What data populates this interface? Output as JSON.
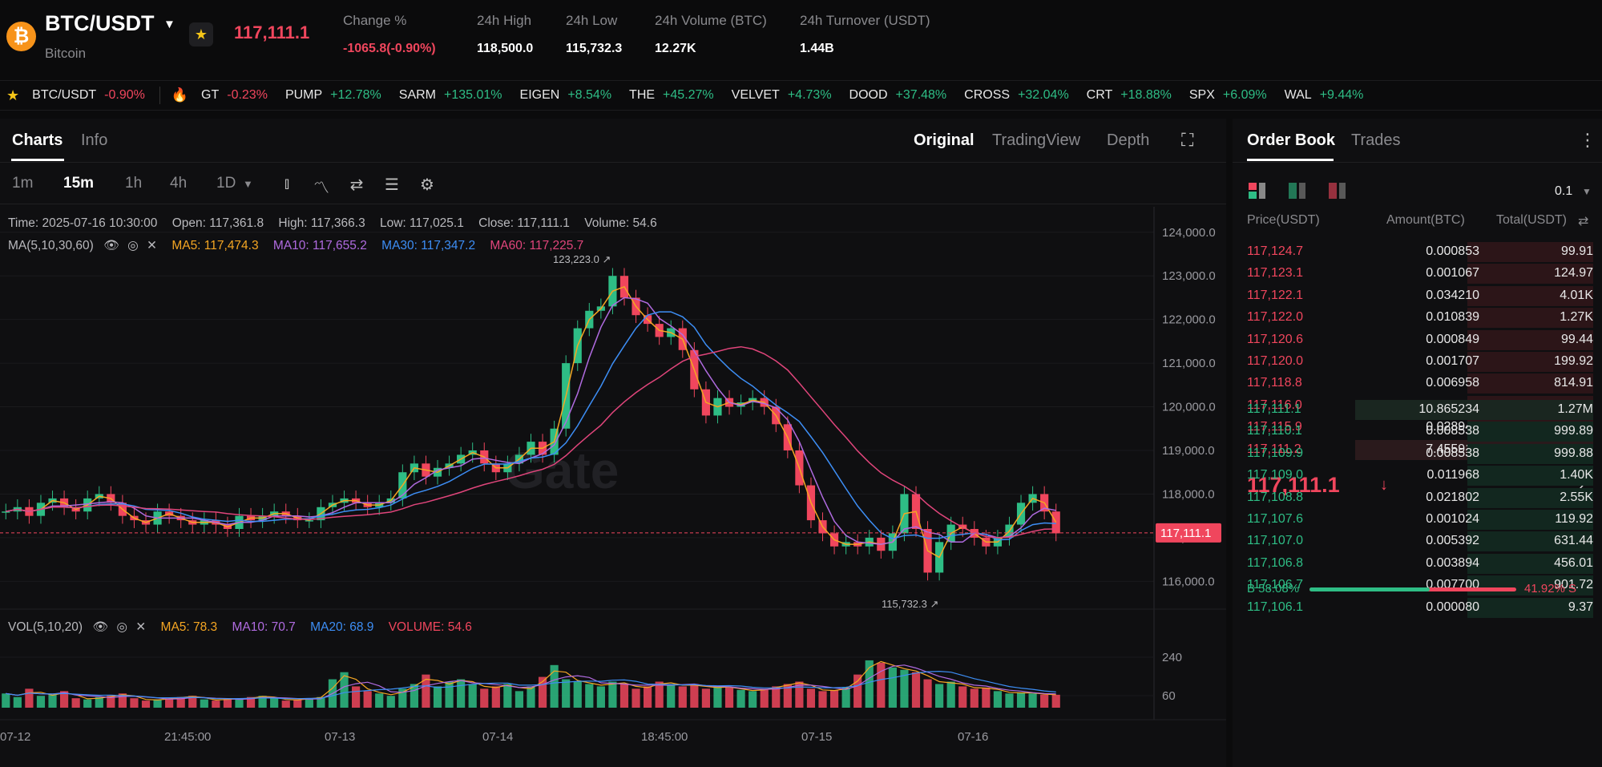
{
  "header": {
    "coin_symbol": "₿",
    "pair": "BTC/USDT",
    "coin_name": "Bitcoin",
    "last_price": "117,111.1",
    "stats": [
      {
        "label": "Change %",
        "value": "-1065.8(-0.90%)",
        "color": "#f0465d"
      },
      {
        "label": "24h High",
        "value": "118,500.0",
        "color": "#ffffff"
      },
      {
        "label": "24h Low",
        "value": "115,732.3",
        "color": "#ffffff"
      },
      {
        "label": "24h Volume (BTC)",
        "value": "12.27K",
        "color": "#ffffff"
      },
      {
        "label": "24h Turnover (USDT)",
        "value": "1.44B",
        "color": "#ffffff"
      }
    ]
  },
  "ticker": [
    {
      "sym": "BTC/USDT",
      "chg": "-0.90%",
      "dir": "down"
    },
    {
      "sym": "GT",
      "chg": "-0.23%",
      "dir": "down"
    },
    {
      "sym": "PUMP",
      "chg": "+12.78%",
      "dir": "up"
    },
    {
      "sym": "SARM",
      "chg": "+135.01%",
      "dir": "up"
    },
    {
      "sym": "EIGEN",
      "chg": "+8.54%",
      "dir": "up"
    },
    {
      "sym": "THE",
      "chg": "+45.27%",
      "dir": "up"
    },
    {
      "sym": "VELVET",
      "chg": "+4.73%",
      "dir": "up"
    },
    {
      "sym": "DOOD",
      "chg": "+37.48%",
      "dir": "up"
    },
    {
      "sym": "CROSS",
      "chg": "+32.04%",
      "dir": "up"
    },
    {
      "sym": "CRT",
      "chg": "+18.88%",
      "dir": "up"
    },
    {
      "sym": "SPX",
      "chg": "+6.09%",
      "dir": "up"
    },
    {
      "sym": "WAL",
      "chg": "+9.44%",
      "dir": "up"
    }
  ],
  "chart": {
    "tabs": [
      "Charts",
      "Info"
    ],
    "views": [
      "Original",
      "TradingView",
      "Depth"
    ],
    "timeframes": [
      "1m",
      "15m",
      "1h",
      "4h",
      "1D"
    ],
    "ohlc": {
      "time": "Time: 2025-07-16 10:30:00",
      "open": "Open: 117,361.8",
      "high": "High: 117,366.3",
      "low": "Low: 117,025.1",
      "close": "Close: 117,111.1",
      "volume": "Volume: 54.6"
    },
    "ma_label": "MA(5,10,30,60)",
    "ma": [
      {
        "label": "MA5: 117,474.3",
        "color": "#f5a623"
      },
      {
        "label": "MA10: 117,655.2",
        "color": "#b06be0"
      },
      {
        "label": "MA30: 117,347.2",
        "color": "#3d8ef5"
      },
      {
        "label": "MA60: 117,225.7",
        "color": "#e0457b"
      }
    ],
    "vol_label": "VOL(5,10,20)",
    "vol_ma": [
      {
        "label": "MA5: 78.3",
        "color": "#f5a623"
      },
      {
        "label": "MA10: 70.7",
        "color": "#b06be0"
      },
      {
        "label": "MA20: 68.9",
        "color": "#3d8ef5"
      },
      {
        "label": "VOLUME: 54.6",
        "color": "#f0465d"
      }
    ],
    "high_mark": "123,223.0",
    "low_mark": "115,732.3",
    "current_tag": "117,111.1",
    "watermark": "Gate",
    "price_ticks": [
      "124,000.0",
      "123,000.0",
      "122,000.0",
      "121,000.0",
      "120,000.0",
      "119,000.0",
      "118,000.0",
      "117,000.0",
      "116,000.0"
    ],
    "vol_ticks": [
      "240",
      "60"
    ],
    "x_ticks": [
      "07-12",
      "21:45:00",
      "07-13",
      "07-14",
      "18:45:00",
      "07-15",
      "07-16"
    ]
  },
  "chart_data": {
    "type": "line",
    "title": "",
    "ylim": [
      115400,
      124400
    ],
    "close_series": [
      117.6,
      117.7,
      117.5,
      117.8,
      117.9,
      117.7,
      117.6,
      117.9,
      118.0,
      117.8,
      117.5,
      117.4,
      117.3,
      117.6,
      117.5,
      117.4,
      117.3,
      117.4,
      117.3,
      117.2,
      117.5,
      117.4,
      117.5,
      117.6,
      117.5,
      117.4,
      117.4,
      117.7,
      117.8,
      117.9,
      117.8,
      117.7,
      117.8,
      117.9,
      118.5,
      118.7,
      118.4,
      118.6,
      118.7,
      118.9,
      119.0,
      118.7,
      118.5,
      118.7,
      118.9,
      119.2,
      118.9,
      119.5,
      121.0,
      121.8,
      122.2,
      122.3,
      123.0,
      122.5,
      122.1,
      121.9,
      121.6,
      121.8,
      121.3,
      120.4,
      119.8,
      120.2,
      120.0,
      120.1,
      120.2,
      120.0,
      119.6,
      119.0,
      118.2,
      117.4,
      117.1,
      116.8,
      116.9,
      116.8,
      117.0,
      116.7,
      117.1,
      118.0,
      117.2,
      116.2,
      116.9,
      117.3,
      117.2,
      117.0,
      116.8,
      117.0,
      117.3,
      117.8,
      118.0,
      117.6,
      117.1
    ],
    "volume_series": [
      60,
      45,
      80,
      50,
      55,
      70,
      40,
      35,
      45,
      50,
      60,
      40,
      30,
      35,
      40,
      45,
      50,
      35,
      30,
      40,
      35,
      45,
      50,
      40,
      30,
      35,
      40,
      45,
      120,
      150,
      90,
      70,
      60,
      50,
      80,
      100,
      140,
      90,
      110,
      120,
      100,
      80,
      90,
      100,
      70,
      90,
      130,
      180,
      120,
      110,
      100,
      90,
      110,
      100,
      80,
      90,
      110,
      100,
      90,
      100,
      80,
      90,
      85,
      75,
      70,
      80,
      90,
      100,
      110,
      80,
      70,
      75,
      85,
      140,
      200,
      190,
      170,
      160,
      150,
      120,
      100,
      110,
      90,
      80,
      85,
      70,
      60,
      65,
      60,
      55,
      54.6
    ]
  },
  "orderbook": {
    "tabs": [
      "Order Book",
      "Trades"
    ],
    "precision": "0.1",
    "headers": [
      "Price(USDT)",
      "Amount(BTC)",
      "Total(USDT)"
    ],
    "asks": [
      {
        "p": "117,124.7",
        "a": "0.000853",
        "t": "99.91",
        "f": 0.35
      },
      {
        "p": "117,123.1",
        "a": "0.001067",
        "t": "124.97",
        "f": 0.35
      },
      {
        "p": "117,122.1",
        "a": "0.034210",
        "t": "4.01K",
        "f": 0.35
      },
      {
        "p": "117,122.0",
        "a": "0.010839",
        "t": "1.27K",
        "f": 0.35
      },
      {
        "p": "117,120.6",
        "a": "0.000849",
        "t": "99.44",
        "f": 0.35
      },
      {
        "p": "117,120.0",
        "a": "0.001707",
        "t": "199.92",
        "f": 0.35
      },
      {
        "p": "117,118.8",
        "a": "0.006958",
        "t": "814.91",
        "f": 0.35
      },
      {
        "p": "117,116.0",
        "a": "0.086986",
        "t": "10.19K",
        "f": 0.35
      },
      {
        "p": "117,115.9",
        "a": "0.028947",
        "t": "3.39K",
        "f": 0.35
      },
      {
        "p": "117,111.2",
        "a": "7.455912",
        "t": "873.17K",
        "f": 0.66
      }
    ],
    "mid_price": "117,111.1",
    "bids": [
      {
        "p": "117,111.1",
        "a": "10.865234",
        "t": "1.27M",
        "f": 0.66
      },
      {
        "p": "117,110.1",
        "a": "0.008538",
        "t": "999.89",
        "f": 0.35
      },
      {
        "p": "117,109.9",
        "a": "0.008538",
        "t": "999.88",
        "f": 0.35
      },
      {
        "p": "117,109.0",
        "a": "0.011968",
        "t": "1.40K",
        "f": 0.35
      },
      {
        "p": "117,108.8",
        "a": "0.021802",
        "t": "2.55K",
        "f": 0.35
      },
      {
        "p": "117,107.6",
        "a": "0.001024",
        "t": "119.92",
        "f": 0.35
      },
      {
        "p": "117,107.0",
        "a": "0.005392",
        "t": "631.44",
        "f": 0.35
      },
      {
        "p": "117,106.8",
        "a": "0.003894",
        "t": "456.01",
        "f": 0.35
      },
      {
        "p": "117,106.7",
        "a": "0.007700",
        "t": "901.72",
        "f": 0.35
      },
      {
        "p": "117,106.1",
        "a": "0.000080",
        "t": "9.37",
        "f": 0.35
      }
    ],
    "buy_ratio": "B 58.08%",
    "sell_ratio": "41.92% S",
    "buy_fraction": 0.5808
  },
  "colors": {
    "up": "#2ebd85",
    "down": "#f0465d"
  }
}
